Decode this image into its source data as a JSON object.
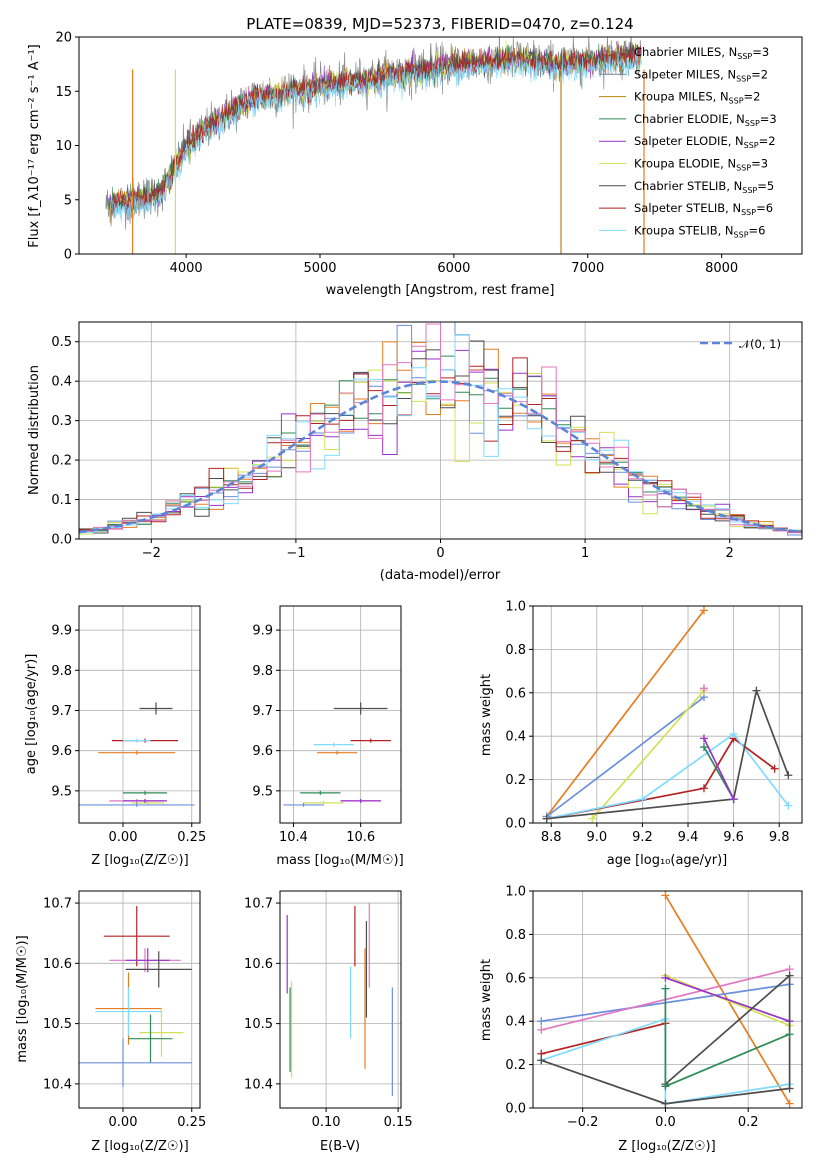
{
  "chart_data": [
    {
      "id": "spectrum",
      "type": "line",
      "title": "PLATE=0839, MJD=52373, FIBERID=0470, z=0.124",
      "xlabel": "wavelength [Angstrom, rest frame]",
      "ylabel": "Flux [f_λ10⁻¹⁷ erg cm⁻² s⁻¹ A⁻¹]",
      "xlim": [
        3200,
        8600
      ],
      "ylim": [
        0,
        20
      ],
      "xticks": [
        4000,
        5000,
        6000,
        7000,
        8000
      ],
      "yticks": [
        0,
        5,
        10,
        15,
        20
      ],
      "grid": false,
      "legend_position": "top-right",
      "series": [
        {
          "name": "Chabrier MILES, N_SSP=3",
          "color": "#7f7f7f"
        },
        {
          "name": "Salpeter MILES, N_SSP=2",
          "color": "#6f7f8f"
        },
        {
          "name": "Kroupa MILES, N_SSP=2",
          "color": "#b8860b"
        },
        {
          "name": "Chabrier ELODIE, N_SSP=3",
          "color": "#2e8b57"
        },
        {
          "name": "Salpeter ELODIE, N_SSP=2",
          "color": "#9932cc"
        },
        {
          "name": "Kroupa ELODIE, N_SSP=3",
          "color": "#d4e157"
        },
        {
          "name": "Chabrier STELIB, N_SSP=5",
          "color": "#4d4d4d"
        },
        {
          "name": "Salpeter STELIB, N_SSP=6",
          "color": "#b22222"
        },
        {
          "name": "Kroupa STELIB, N_SSP=6",
          "color": "#7fdbff"
        }
      ],
      "continuum": {
        "x": [
          3400,
          3600,
          3800,
          3900,
          4000,
          4200,
          4500,
          4700,
          5000,
          5300,
          5500,
          5800,
          6000,
          6300,
          6500,
          6800,
          7000,
          7200,
          7400
        ],
        "y": [
          4.5,
          5.0,
          5.5,
          7.5,
          10.0,
          12.0,
          14.5,
          14.8,
          15.5,
          16.0,
          16.5,
          17.0,
          17.5,
          17.8,
          18.0,
          17.5,
          17.8,
          18.2,
          18.4
        ]
      }
    },
    {
      "id": "residuals",
      "type": "histogram",
      "xlabel": "(data-model)/error",
      "ylabel": "Normed distribution",
      "xlim": [
        -2.5,
        2.5
      ],
      "ylim": [
        0,
        0.55
      ],
      "xticks": [
        -2,
        -1,
        0,
        1,
        2
      ],
      "yticks": [
        0.0,
        0.1,
        0.2,
        0.3,
        0.4,
        0.5
      ],
      "grid": true,
      "legend": "𝒩(0, 1)",
      "legend_position": "top-right",
      "bin_width": 0.1
    },
    {
      "id": "age-vs-z",
      "type": "errorbar",
      "xlabel": "Z [log₁₀(Z/Z☉)]",
      "ylabel": "age  [log₁₀(age/yr)]",
      "xlim": [
        -0.16,
        0.28
      ],
      "ylim": [
        9.42,
        9.96
      ],
      "xticks": [
        0.0,
        0.25
      ],
      "yticks": [
        9.5,
        9.6,
        9.7,
        9.8,
        9.9
      ],
      "grid": true,
      "points": [
        {
          "x": 0.12,
          "y": 9.705,
          "xerr": 0.06,
          "yerr": 0.015,
          "color": "#4d4d4d"
        },
        {
          "x": 0.08,
          "y": 9.625,
          "xerr": 0.12,
          "yerr": 0.005,
          "color": "#b22222"
        },
        {
          "x": 0.05,
          "y": 9.625,
          "xerr": 0.05,
          "yerr": 0.005,
          "color": "#7fdbff"
        },
        {
          "x": 0.05,
          "y": 9.595,
          "xerr": 0.14,
          "yerr": 0.005,
          "color": "#e67e22"
        },
        {
          "x": 0.09,
          "y": 9.47,
          "xerr": 0.06,
          "yerr": 0.005,
          "color": "#d4e157"
        },
        {
          "x": 0.05,
          "y": 9.465,
          "xerr": 0.21,
          "yerr": 0.005,
          "color": "#6a8fdc"
        },
        {
          "x": 0.05,
          "y": 9.475,
          "xerr": 0.1,
          "yerr": 0.005,
          "color": "#e377c2"
        },
        {
          "x": 0.08,
          "y": 9.495,
          "xerr": 0.08,
          "yerr": 0.005,
          "color": "#2e8b57"
        },
        {
          "x": 0.08,
          "y": 9.475,
          "xerr": 0.08,
          "yerr": 0.005,
          "color": "#9932cc"
        }
      ]
    },
    {
      "id": "age-vs-mass",
      "type": "errorbar",
      "xlabel": "mass [log₁₀(M/M☉)]",
      "xlim": [
        10.36,
        10.72
      ],
      "ylim": [
        9.42,
        9.96
      ],
      "xticks": [
        10.4,
        10.6
      ],
      "yticks": [
        9.5,
        9.6,
        9.7,
        9.8,
        9.9
      ],
      "grid": true,
      "points": [
        {
          "x": 10.6,
          "y": 9.705,
          "xerr": 0.08,
          "yerr": 0.015,
          "color": "#4d4d4d"
        },
        {
          "x": 10.63,
          "y": 9.625,
          "xerr": 0.06,
          "yerr": 0.005,
          "color": "#b22222"
        },
        {
          "x": 10.52,
          "y": 9.615,
          "xerr": 0.06,
          "yerr": 0.005,
          "color": "#7fdbff"
        },
        {
          "x": 10.53,
          "y": 9.595,
          "xerr": 0.06,
          "yerr": 0.005,
          "color": "#e67e22"
        },
        {
          "x": 10.49,
          "y": 9.47,
          "xerr": 0.06,
          "yerr": 0.005,
          "color": "#d4e157"
        },
        {
          "x": 10.43,
          "y": 9.465,
          "xerr": 0.06,
          "yerr": 0.005,
          "color": "#6a8fdc"
        },
        {
          "x": 10.6,
          "y": 9.475,
          "xerr": 0.06,
          "yerr": 0.005,
          "color": "#e377c2"
        },
        {
          "x": 10.48,
          "y": 9.495,
          "xerr": 0.06,
          "yerr": 0.005,
          "color": "#2e8b57"
        },
        {
          "x": 10.6,
          "y": 9.475,
          "xerr": 0.06,
          "yerr": 0.005,
          "color": "#9932cc"
        }
      ]
    },
    {
      "id": "weight-vs-age",
      "type": "line",
      "xlabel": "age  [log₁₀(age/yr)]",
      "ylabel": "mass weight",
      "xlim": [
        8.72,
        9.9
      ],
      "ylim": [
        0,
        1
      ],
      "xticks": [
        8.8,
        9.0,
        9.2,
        9.4,
        9.6,
        9.8
      ],
      "yticks": [
        0.0,
        0.2,
        0.4,
        0.6,
        0.8,
        1.0
      ],
      "grid": true,
      "series": [
        {
          "color": "#e67e22",
          "x": [
            8.78,
            9.47
          ],
          "y": [
            0.03,
            0.98
          ]
        },
        {
          "color": "#6a8fdc",
          "x": [
            8.78,
            9.47
          ],
          "y": [
            0.03,
            0.58
          ]
        },
        {
          "color": "#d4e157",
          "x": [
            8.98,
            9.47
          ],
          "y": [
            0.02,
            0.61
          ]
        },
        {
          "color": "#b22222",
          "x": [
            8.78,
            9.47,
            9.6,
            9.78
          ],
          "y": [
            0.02,
            0.16,
            0.39,
            0.25
          ]
        },
        {
          "color": "#7fdbff",
          "x": [
            8.78,
            9.2,
            9.6,
            9.84
          ],
          "y": [
            0.02,
            0.11,
            0.41,
            0.08
          ]
        },
        {
          "color": "#4d4d4d",
          "x": [
            8.78,
            9.6,
            9.7,
            9.84
          ],
          "y": [
            0.02,
            0.11,
            0.61,
            0.22
          ]
        },
        {
          "color": "#2e8b57",
          "x": [
            9.47,
            9.6
          ],
          "y": [
            0.35,
            0.11
          ]
        },
        {
          "color": "#9932cc",
          "x": [
            9.47,
            9.6
          ],
          "y": [
            0.39,
            0.11
          ]
        },
        {
          "color": "#e377c2",
          "x": [
            9.47,
            9.47
          ],
          "y": [
            0.62,
            0.62
          ]
        }
      ]
    },
    {
      "id": "mass-vs-z",
      "type": "errorbar",
      "xlabel": "Z [log₁₀(Z/Z☉)]",
      "ylabel": "mass [log₁₀(M/M☉)]",
      "xlim": [
        -0.16,
        0.28
      ],
      "ylim": [
        10.36,
        10.72
      ],
      "xticks": [
        0.0,
        0.25
      ],
      "yticks": [
        10.4,
        10.5,
        10.6,
        10.7
      ],
      "grid": true,
      "points": [
        {
          "x": 0.05,
          "y": 10.645,
          "xerr": 0.12,
          "yerr": 0.05,
          "color": "#b22222"
        },
        {
          "x": 0.08,
          "y": 10.605,
          "xerr": 0.13,
          "yerr": 0.02,
          "color": "#e377c2"
        },
        {
          "x": 0.09,
          "y": 10.605,
          "xerr": 0.08,
          "yerr": 0.02,
          "color": "#9932cc"
        },
        {
          "x": 0.13,
          "y": 10.59,
          "xerr": 0.12,
          "yerr": 0.03,
          "color": "#4d4d4d"
        },
        {
          "x": 0.02,
          "y": 10.525,
          "xerr": 0.12,
          "yerr": 0.06,
          "color": "#e67e22"
        },
        {
          "x": 0.02,
          "y": 10.52,
          "xerr": 0.12,
          "yerr": 0.04,
          "color": "#7fdbff"
        },
        {
          "x": 0.14,
          "y": 10.485,
          "xerr": 0.08,
          "yerr": 0.04,
          "color": "#d4e157"
        },
        {
          "x": 0.1,
          "y": 10.475,
          "xerr": 0.08,
          "yerr": 0.04,
          "color": "#2e8b57"
        },
        {
          "x": 0.0,
          "y": 10.435,
          "xerr": 0.25,
          "yerr": 0.04,
          "color": "#6a8fdc"
        }
      ]
    },
    {
      "id": "mass-vs-ebv",
      "type": "errorbar",
      "xlabel": "E(B-V)",
      "xlim": [
        0.068,
        0.152
      ],
      "ylim": [
        10.36,
        10.72
      ],
      "xticks": [
        0.1,
        0.15
      ],
      "yticks": [
        10.4,
        10.5,
        10.6,
        10.7
      ],
      "grid": true,
      "points": [
        {
          "x": 0.073,
          "y": 10.615,
          "xerr": 0,
          "yerr": 0.065,
          "color": "#9932cc"
        },
        {
          "x": 0.076,
          "y": 10.49,
          "xerr": 0,
          "yerr": 0.08,
          "color": "#d4e157"
        },
        {
          "x": 0.075,
          "y": 10.49,
          "xerr": 0,
          "yerr": 0.07,
          "color": "#2e8b57"
        },
        {
          "x": 0.117,
          "y": 10.535,
          "xerr": 0,
          "yerr": 0.06,
          "color": "#7fdbff"
        },
        {
          "x": 0.12,
          "y": 10.645,
          "xerr": 0,
          "yerr": 0.05,
          "color": "#b22222"
        },
        {
          "x": 0.127,
          "y": 10.525,
          "xerr": 0,
          "yerr": 0.1,
          "color": "#e67e22"
        },
        {
          "x": 0.128,
          "y": 10.59,
          "xerr": 0,
          "yerr": 0.08,
          "color": "#4d4d4d"
        },
        {
          "x": 0.13,
          "y": 10.63,
          "xerr": 0,
          "yerr": 0.07,
          "color": "#e377c2"
        },
        {
          "x": 0.146,
          "y": 10.47,
          "xerr": 0,
          "yerr": 0.09,
          "color": "#6a8fdc"
        }
      ]
    },
    {
      "id": "weight-vs-z",
      "type": "line",
      "xlabel": "Z [log₁₀(Z/Z☉)]",
      "ylabel": "mass weight",
      "xlim": [
        -0.32,
        0.33
      ],
      "ylim": [
        0,
        1
      ],
      "xticks": [
        -0.2,
        0.0,
        0.2
      ],
      "yticks": [
        0.0,
        0.2,
        0.4,
        0.6,
        0.8,
        1.0
      ],
      "grid": true,
      "series": [
        {
          "color": "#e67e22",
          "x": [
            0.0,
            0.3
          ],
          "y": [
            0.98,
            0.02
          ]
        },
        {
          "color": "#6a8fdc",
          "x": [
            -0.3,
            0.3
          ],
          "y": [
            0.4,
            0.57
          ]
        },
        {
          "color": "#e377c2",
          "x": [
            -0.3,
            0.3
          ],
          "y": [
            0.36,
            0.64
          ]
        },
        {
          "color": "#d4e157",
          "x": [
            0.0,
            0.3
          ],
          "y": [
            0.61,
            0.38
          ]
        },
        {
          "color": "#9932cc",
          "x": [
            0.0,
            0.3
          ],
          "y": [
            0.6,
            0.4
          ]
        },
        {
          "color": "#b22222",
          "x": [
            -0.3,
            0.0
          ],
          "y": [
            0.25,
            0.39
          ]
        },
        {
          "color": "#7fdbff",
          "x": [
            -0.3,
            0.0,
            0.0,
            0.3
          ],
          "y": [
            0.22,
            0.41,
            0.02,
            0.11
          ]
        },
        {
          "color": "#4d4d4d",
          "x": [
            -0.3,
            0.0,
            0.3,
            0.3,
            0.0
          ],
          "y": [
            0.22,
            0.02,
            0.09,
            0.61,
            0.11
          ]
        },
        {
          "color": "#2e8b57",
          "x": [
            0.0,
            0.0,
            0.3
          ],
          "y": [
            0.55,
            0.1,
            0.34
          ]
        }
      ]
    }
  ]
}
